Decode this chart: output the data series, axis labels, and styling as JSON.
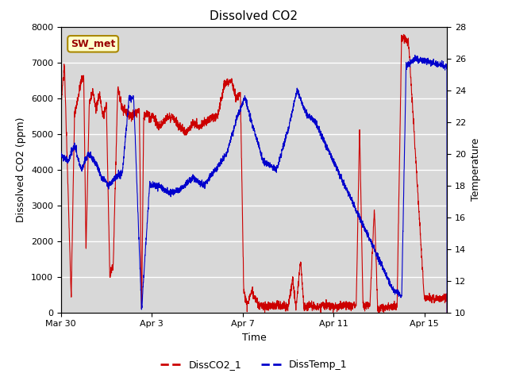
{
  "title": "Dissolved CO2",
  "xlabel": "Time",
  "ylabel_left": "Dissolved CO2 (ppm)",
  "ylabel_right": "Temperature",
  "annotation": "SW_met",
  "ylim_left": [
    0,
    8000
  ],
  "ylim_right": [
    10,
    28
  ],
  "yticks_left": [
    0,
    1000,
    2000,
    3000,
    4000,
    5000,
    6000,
    7000,
    8000
  ],
  "yticks_right": [
    10,
    12,
    14,
    16,
    18,
    20,
    22,
    24,
    26,
    28
  ],
  "color_co2": "#cc0000",
  "color_temp": "#0000cc",
  "bg_color": "#d8d8d8",
  "legend_labels": [
    "DissCO2_1",
    "DissTemp_1"
  ],
  "xtick_labels": [
    "Mar 30",
    "Apr 3",
    "Apr 7",
    "Apr 11",
    "Apr 15"
  ],
  "xtick_positions": [
    0,
    4,
    8,
    12,
    16
  ],
  "xlim": [
    0,
    17
  ]
}
